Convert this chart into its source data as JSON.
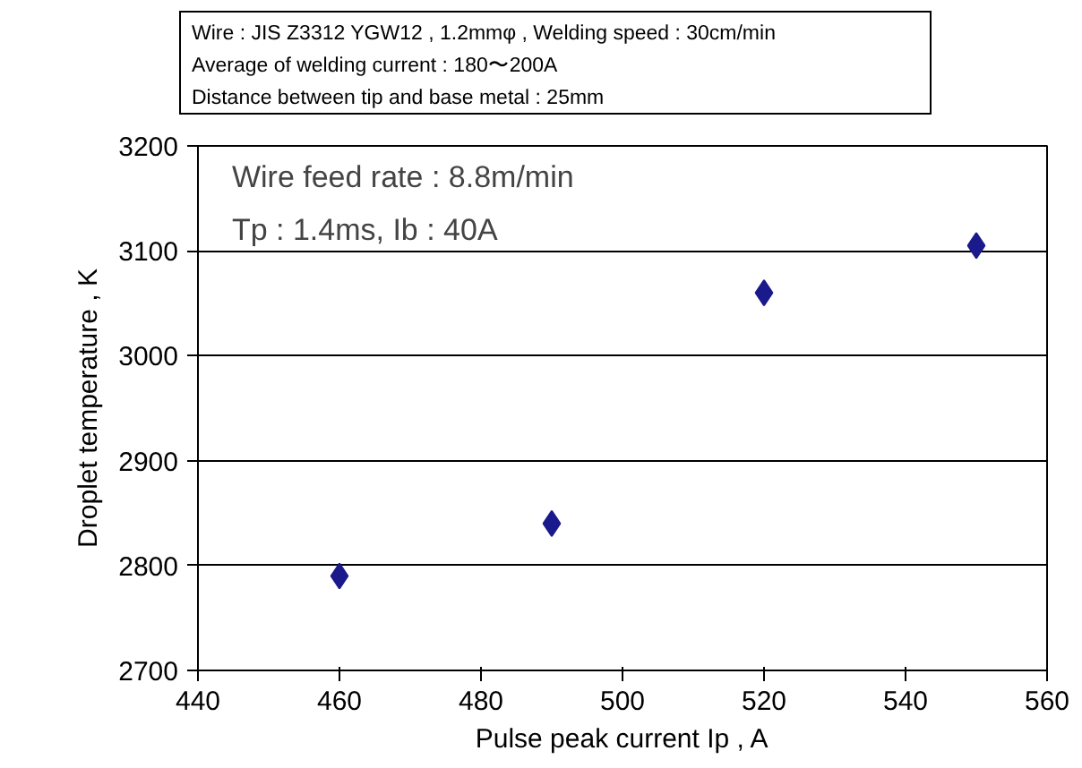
{
  "chart_data": {
    "type": "scatter",
    "xlabel": "Pulse peak current Ip , A",
    "ylabel": "Droplet temperature , K",
    "x": [
      460,
      490,
      520,
      550
    ],
    "series": [
      {
        "color": "#1a1a8c",
        "values": [
          2790,
          2840,
          3060,
          3105
        ]
      }
    ],
    "marker": "diamond",
    "grid": "y",
    "xlim": [
      440,
      560
    ],
    "xticks": [
      440,
      460,
      480,
      500,
      520,
      540,
      560
    ],
    "ylim": [
      2700,
      3200
    ],
    "yticks": [
      2700,
      2800,
      2900,
      3000,
      3100,
      3200
    ],
    "annotations": [
      "Wire : JIS Z3312 YGW12 , 1.2mmφ , Welding speed : 30cm/min",
      "Average of welding current : 180〜200A",
      "Distance between tip and base metal : 25mm",
      "Wire feed rate : 8.8m/min",
      "Tp : 1.4ms, Ib : 40A"
    ]
  }
}
